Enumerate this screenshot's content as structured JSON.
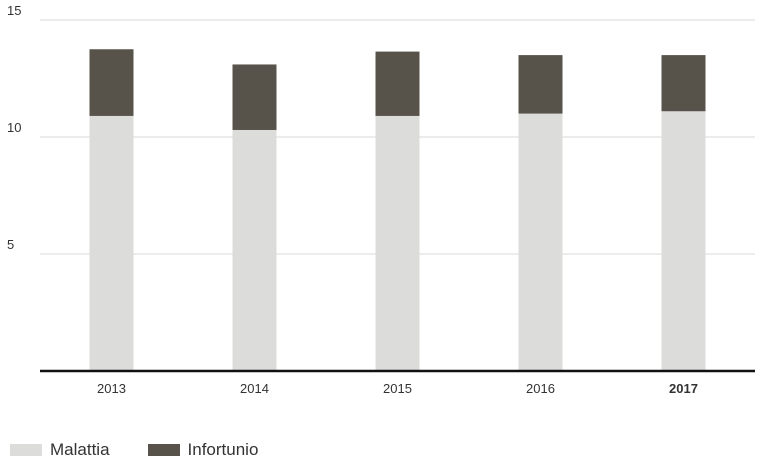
{
  "chart_data": {
    "type": "bar",
    "stacked": true,
    "categories": [
      "2013",
      "2014",
      "2015",
      "2016",
      "2017"
    ],
    "highlight_category": "2017",
    "series": [
      {
        "name": "Malattia",
        "color": "#dcdcda",
        "values": [
          10.9,
          10.3,
          10.9,
          11.0,
          11.1
        ]
      },
      {
        "name": "Infortunio",
        "color": "#58534a",
        "values": [
          2.85,
          2.8,
          2.75,
          2.5,
          2.4
        ]
      }
    ],
    "ylim": [
      0,
      15
    ],
    "yticks": [
      5,
      10,
      15
    ],
    "grid": true,
    "legend": "bottom-left",
    "title": "",
    "xlabel": "",
    "ylabel": ""
  }
}
